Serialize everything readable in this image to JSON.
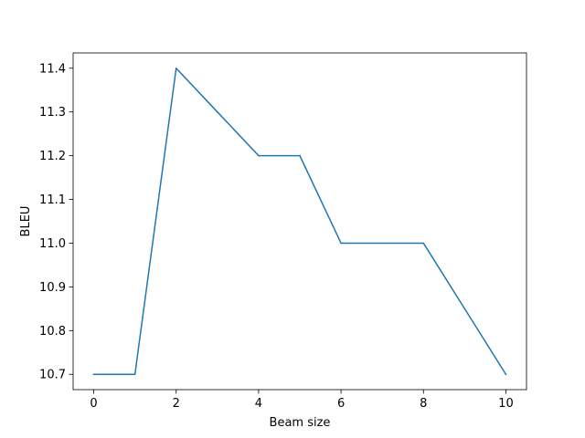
{
  "chart_data": {
    "type": "line",
    "xlabel": "Beam size",
    "ylabel": "BLEU",
    "xlim": [
      -0.5,
      10.5
    ],
    "ylim": [
      10.665,
      11.435
    ],
    "xticks": [
      0,
      2,
      4,
      6,
      8,
      10
    ],
    "yticks": [
      10.7,
      10.8,
      10.9,
      11.0,
      11.1,
      11.2,
      11.3,
      11.4
    ],
    "xtick_labels": [
      "0",
      "2",
      "4",
      "6",
      "8",
      "10"
    ],
    "ytick_labels": [
      "10.7",
      "10.8",
      "10.9",
      "11.0",
      "11.1",
      "11.2",
      "11.3",
      "11.4"
    ],
    "grid": false,
    "series": [
      {
        "x": [
          0,
          1,
          2,
          3,
          4,
          5,
          6,
          7,
          8,
          9,
          10
        ],
        "y": [
          10.7,
          10.7,
          11.4,
          11.3,
          11.2,
          11.2,
          11.0,
          11.0,
          11.0,
          10.85,
          10.7
        ],
        "color": "#1f77b4"
      }
    ]
  }
}
